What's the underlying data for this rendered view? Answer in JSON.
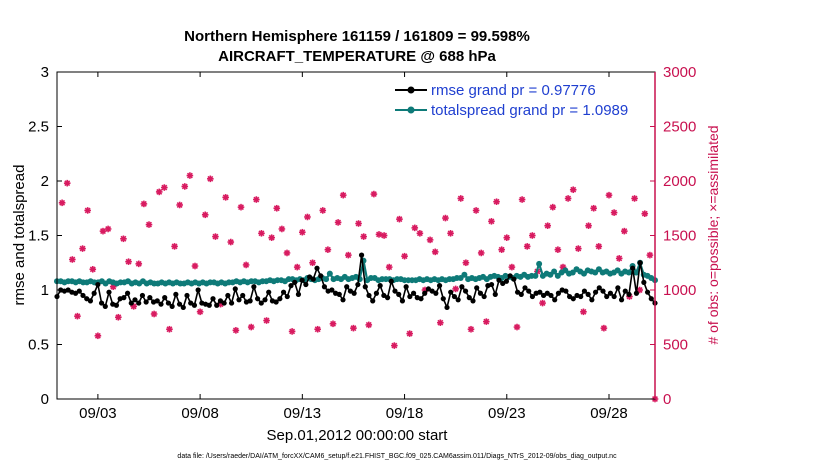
{
  "chart_data": {
    "type": "line",
    "title": [
      "Northern Hemisphere 161159 / 161809 = 99.598%",
      "AIRCRAFT_TEMPERATURE @ 688 hPa"
    ],
    "xlabel": "Sep.01,2012 00:00:00 start",
    "ylabel": "rmse and totalspread",
    "ylabel_right": "# of obs: o=possible; ×=assimilated",
    "footnote": "data file: /Users/raeder/DAI/ATM_forcXX/CAM6_setup/f.e21.FHIST_BGC.f09_025.CAM6assim.011/Diags_NTrS_2012-09/obs_diag_output.nc",
    "x_start_day": 1.0,
    "x_end_day": 30.25,
    "x_tick_days": [
      3,
      8,
      13,
      18,
      23,
      28
    ],
    "x_tick_labels": [
      "09/03",
      "09/08",
      "09/13",
      "09/18",
      "09/23",
      "09/28"
    ],
    "ylim": [
      0,
      3
    ],
    "y_ticks": [
      0,
      0.5,
      1,
      1.5,
      2,
      2.5,
      3
    ],
    "y_tick_labels": [
      "0",
      "0.5",
      "1",
      "1.5",
      "2",
      "2.5",
      "3"
    ],
    "ylim_right": [
      0,
      3000
    ],
    "y_ticks_right": [
      0,
      500,
      1000,
      1500,
      2000,
      2500,
      3000
    ],
    "y_tick_labels_right": [
      "0",
      "500",
      "1000",
      "1500",
      "2000",
      "2500",
      "3000"
    ],
    "legend": [
      "rmse grand pr = 0.97776",
      "totalspread grand pr = 1.0989"
    ],
    "colors": {
      "rmse": "#000000",
      "spread": "#0e7a78",
      "obs": "#d81b60",
      "right_axis": "#c8104f",
      "legend_text": "#1f3fd0"
    },
    "series": [
      {
        "name": "rmse",
        "values": [
          0.94,
          1.0,
          0.99,
          1.0,
          0.98,
          0.97,
          0.99,
          0.95,
          0.92,
          0.9,
          0.97,
          1.05,
          0.88,
          0.85,
          0.98,
          0.87,
          0.86,
          0.92,
          0.93,
          0.97,
          0.88,
          0.91,
          0.88,
          0.95,
          0.89,
          0.93,
          0.89,
          0.9,
          0.87,
          0.93,
          0.88,
          0.85,
          0.96,
          0.87,
          0.84,
          0.95,
          0.88,
          0.86,
          1.0,
          0.88,
          0.87,
          0.86,
          0.92,
          0.86,
          0.9,
          0.88,
          0.95,
          0.88,
          1.01,
          0.91,
          0.95,
          0.89,
          0.9,
          1.03,
          0.92,
          0.88,
          0.91,
          0.98,
          0.9,
          0.89,
          0.92,
          0.98,
          0.94,
          1.04,
          1.07,
          0.96,
          1.09,
          1.05,
          1.12,
          1.1,
          1.2,
          1.13,
          1.03,
          0.99,
          1.0,
          0.97,
          0.96,
          0.91,
          1.03,
          0.99,
          0.97,
          1.05,
          1.32,
          1.03,
          0.95,
          0.9,
          0.97,
          1.04,
          0.95,
          0.93,
          1.08,
          0.99,
          0.96,
          0.9,
          1.03,
          0.94,
          0.97,
          0.93,
          0.92,
          0.97,
          1.01,
          0.99,
          0.97,
          1.04,
          0.92,
          0.84,
          0.98,
          0.94,
          0.91,
          1.03,
          0.99,
          0.93,
          0.9,
          1.02,
          0.97,
          0.94,
          1.04,
          1.05,
          0.96,
          1.09,
          1.06,
          1.08,
          1.13,
          1.1,
          0.98,
          0.96,
          1.02,
          0.99,
          0.94,
          0.97,
          0.98,
          0.95,
          0.97,
          0.95,
          0.91,
          0.97,
          1.0,
          0.99,
          0.94,
          0.92,
          0.95,
          0.94,
          0.99,
          0.96,
          0.91,
          0.98,
          1.02,
          0.99,
          0.94,
          0.97,
          0.94,
          1.02,
          0.91,
          0.99,
          0.96,
          1.2,
          0.97,
          1.25,
          1.07,
          0.98,
          0.92,
          0.88
        ]
      },
      {
        "name": "totalspread",
        "values": [
          1.08,
          1.08,
          1.07,
          1.08,
          1.08,
          1.07,
          1.08,
          1.07,
          1.07,
          1.08,
          1.07,
          1.07,
          1.08,
          1.06,
          1.08,
          1.07,
          1.06,
          1.07,
          1.07,
          1.08,
          1.06,
          1.07,
          1.06,
          1.08,
          1.06,
          1.07,
          1.06,
          1.06,
          1.07,
          1.06,
          1.07,
          1.06,
          1.07,
          1.06,
          1.06,
          1.07,
          1.06,
          1.07,
          1.06,
          1.07,
          1.06,
          1.07,
          1.07,
          1.06,
          1.07,
          1.06,
          1.07,
          1.07,
          1.08,
          1.07,
          1.08,
          1.07,
          1.08,
          1.08,
          1.07,
          1.08,
          1.08,
          1.09,
          1.08,
          1.09,
          1.09,
          1.08,
          1.1,
          1.1,
          1.09,
          1.1,
          1.09,
          1.11,
          1.1,
          1.09,
          1.1,
          1.11,
          1.1,
          1.15,
          1.1,
          1.11,
          1.1,
          1.12,
          1.1,
          1.11,
          1.12,
          1.1,
          1.27,
          1.09,
          1.11,
          1.11,
          1.09,
          1.1,
          1.1,
          1.1,
          1.09,
          1.1,
          1.1,
          1.09,
          1.09,
          1.09,
          1.09,
          1.1,
          1.09,
          1.1,
          1.09,
          1.1,
          1.09,
          1.1,
          1.09,
          1.1,
          1.1,
          1.11,
          1.11,
          1.14,
          1.1,
          1.11,
          1.1,
          1.11,
          1.12,
          1.1,
          1.12,
          1.13,
          1.12,
          1.11,
          1.13,
          1.12,
          1.11,
          1.13,
          1.12,
          1.14,
          1.12,
          1.13,
          1.13,
          1.24,
          1.13,
          1.15,
          1.14,
          1.17,
          1.13,
          1.16,
          1.18,
          1.15,
          1.16,
          1.19,
          1.17,
          1.15,
          1.18,
          1.17,
          1.16,
          1.19,
          1.16,
          1.17,
          1.15,
          1.16,
          1.18,
          1.15,
          1.17,
          1.16,
          1.22,
          1.16,
          1.25,
          1.14,
          1.13,
          1.11,
          1.09
        ]
      }
    ],
    "obs_assimilated": {
      "days": [
        1.25,
        1.5,
        1.75,
        2.0,
        2.25,
        2.5,
        2.75,
        3.0,
        3.25,
        3.5,
        3.75,
        4.0,
        4.25,
        4.5,
        4.75,
        5.0,
        5.25,
        5.5,
        5.75,
        6.0,
        6.25,
        6.5,
        6.75,
        7.0,
        7.25,
        7.5,
        7.75,
        8.0,
        8.25,
        8.5,
        8.75,
        9.0,
        9.25,
        9.5,
        9.75,
        10.0,
        10.25,
        10.5,
        10.75,
        11.0,
        11.25,
        11.5,
        11.75,
        12.0,
        12.25,
        12.5,
        12.75,
        13.0,
        13.25,
        13.5,
        13.75,
        14.0,
        14.25,
        14.5,
        14.75,
        15.0,
        15.25,
        15.5,
        15.75,
        16.0,
        16.25,
        16.5,
        16.75,
        17.0,
        17.25,
        17.5,
        17.75,
        18.0,
        18.25,
        18.5,
        18.75,
        19.0,
        19.25,
        19.5,
        19.75,
        20.0,
        20.25,
        20.5,
        20.75,
        21.0,
        21.25,
        21.5,
        21.75,
        22.0,
        22.25,
        22.5,
        22.75,
        23.0,
        23.25,
        23.5,
        23.75,
        24.0,
        24.25,
        24.5,
        24.75,
        25.0,
        25.25,
        25.5,
        25.75,
        26.0,
        26.25,
        26.5,
        26.75,
        27.0,
        27.25,
        27.5,
        27.75,
        28.0,
        28.25,
        28.5,
        28.75,
        29.0,
        29.25,
        29.5,
        29.75,
        30.0,
        30.25
      ],
      "counts": [
        1800,
        1980,
        1280,
        760,
        1380,
        1730,
        1190,
        580,
        1540,
        1560,
        1030,
        750,
        1470,
        1260,
        850,
        1240,
        1790,
        1600,
        780,
        1900,
        1940,
        640,
        1400,
        1780,
        1950,
        2050,
        1220,
        800,
        1690,
        2020,
        1490,
        870,
        1850,
        1440,
        630,
        1760,
        1230,
        660,
        1830,
        1520,
        720,
        1480,
        1750,
        1560,
        1340,
        620,
        1210,
        1530,
        1670,
        1250,
        640,
        1730,
        1370,
        690,
        1620,
        1870,
        1320,
        650,
        1610,
        1490,
        680,
        1880,
        1510,
        1500,
        1210,
        490,
        1650,
        1310,
        600,
        1570,
        1520,
        1000,
        1460,
        1350,
        700,
        1660,
        1520,
        1010,
        1840,
        1250,
        640,
        1730,
        1340,
        710,
        1630,
        1810,
        1370,
        1480,
        1210,
        660,
        1830,
        1400,
        1500,
        1170,
        880,
        1590,
        1760,
        1370,
        1210,
        1840,
        1920,
        1380,
        800,
        1590,
        1750,
        1400,
        650,
        1870,
        1710,
        1290,
        1540,
        940,
        1840,
        1000,
        1700,
        1320,
        0
      ]
    }
  }
}
